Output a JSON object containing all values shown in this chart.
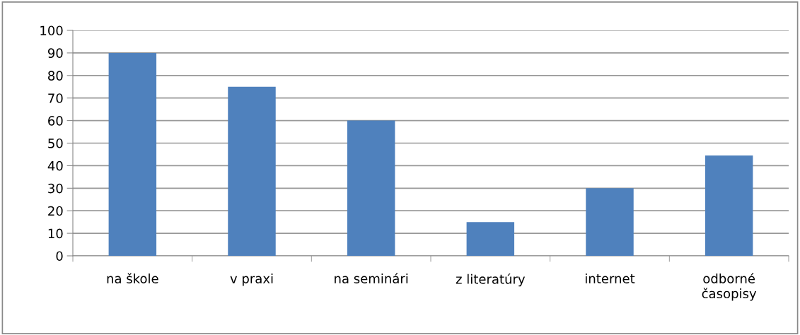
{
  "chart_data": {
    "type": "bar",
    "categories": [
      "na škole",
      "v praxi",
      "na seminári",
      "z literatúry",
      "internet",
      "odborné\nčasopisy"
    ],
    "values": [
      90,
      75,
      60,
      15,
      30,
      44.5
    ],
    "color": "#4f81bd",
    "ylim": [
      0,
      100
    ],
    "yticks": [
      0,
      10,
      20,
      30,
      40,
      50,
      60,
      70,
      80,
      90,
      100
    ],
    "grid": "y",
    "legend": false
  }
}
